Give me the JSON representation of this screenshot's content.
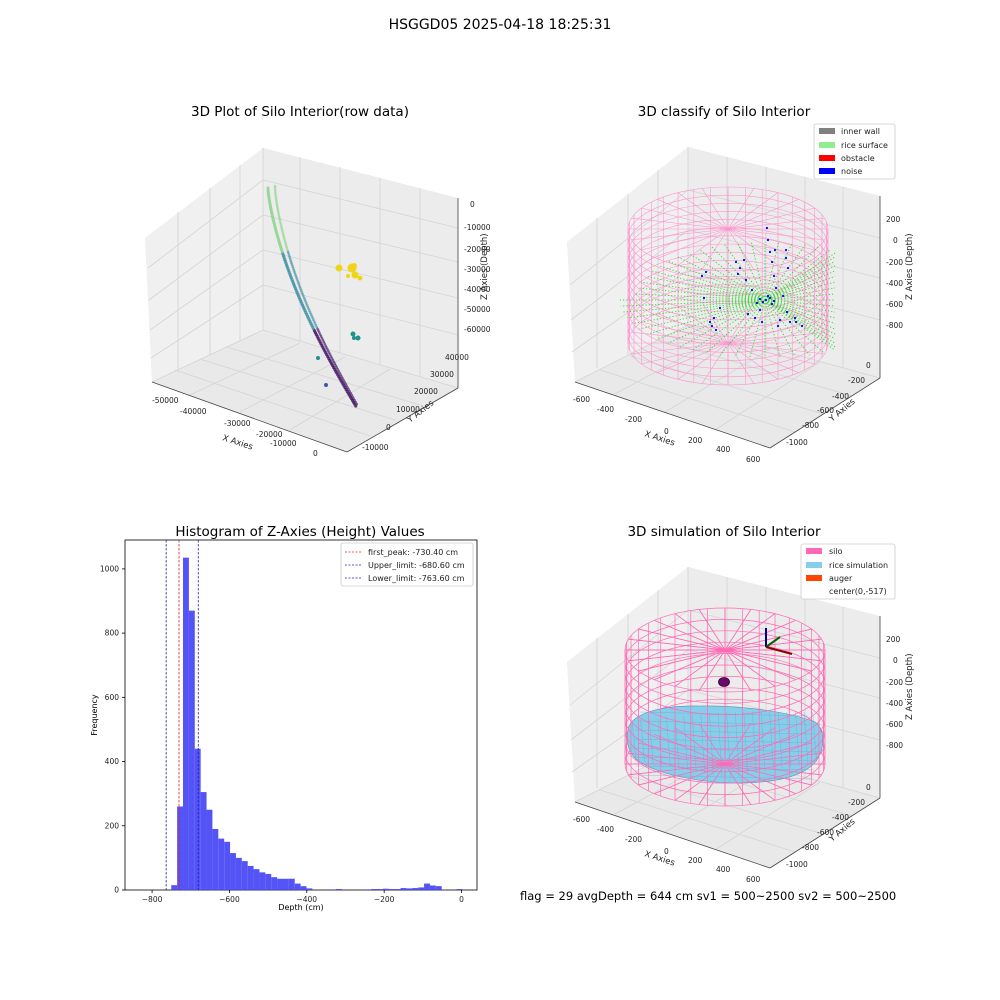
{
  "suptitle": "HSGGD05 2025-04-18 18:25:31",
  "footer": "flag = 29  avgDepth = 644 cm  sv1 = 500~2500  sv2 = 500~2500",
  "chart_data": [
    {
      "type": "scatter",
      "title": "3D Plot of Silo Interior(row data)",
      "xlabel": "X Axies",
      "ylabel": "Y Axies",
      "zlabel": "Z Axies (Depth)",
      "x_ticks": [
        "-50000",
        "-40000",
        "-30000",
        "-20000",
        "-10000",
        "0"
      ],
      "y_ticks": [
        "-10000",
        "0",
        "10000",
        "20000",
        "30000",
        "40000"
      ],
      "z_ticks": [
        "0",
        "-10000",
        "-20000",
        "-30000",
        "-40000",
        "-50000",
        "-60000"
      ],
      "colors": {
        "high": "#8bd38b",
        "mid": "#3a8ca0",
        "low": "#3b0a5c",
        "cluster_a": "#f0d418",
        "cluster_b": "#21918c"
      }
    },
    {
      "type": "scatter",
      "title": "3D classify of Silo Interior",
      "xlabel": "X Axies",
      "ylabel": "Y Axies",
      "zlabel": "Z Axies (Depth)",
      "x_ticks": [
        "-600",
        "-400",
        "-200",
        "0",
        "200",
        "400",
        "600"
      ],
      "y_ticks": [
        "0",
        "-200",
        "-400",
        "-600",
        "-800",
        "-1000"
      ],
      "z_ticks": [
        "200",
        "0",
        "-200",
        "-400",
        "-600",
        "-800"
      ],
      "legend_position": "top-right",
      "legend": [
        {
          "label": "inner wall",
          "color": "#808080"
        },
        {
          "label": "rice surface",
          "color": "#90ee90"
        },
        {
          "label": "obstacle",
          "color": "#ff0000"
        },
        {
          "label": "noise",
          "color": "#0000ff"
        }
      ]
    },
    {
      "type": "bar",
      "title": "Histogram of Z-Axies (Height) Values",
      "xlabel": "Depth (cm)",
      "ylabel": "Frequency",
      "xlim": [
        -870,
        40
      ],
      "ylim": [
        0,
        1090
      ],
      "x_ticks": [
        -800,
        -600,
        -400,
        -200,
        0
      ],
      "y_ticks": [
        0,
        200,
        400,
        600,
        800,
        1000
      ],
      "bin_width": 15.2,
      "bins": [
        {
          "x": -750.4,
          "v": 15
        },
        {
          "x": -735.2,
          "v": 260
        },
        {
          "x": -720.0,
          "v": 1035
        },
        {
          "x": -704.8,
          "v": 870
        },
        {
          "x": -689.6,
          "v": 440
        },
        {
          "x": -674.4,
          "v": 305
        },
        {
          "x": -659.2,
          "v": 250
        },
        {
          "x": -644.0,
          "v": 190
        },
        {
          "x": -628.8,
          "v": 160
        },
        {
          "x": -613.6,
          "v": 150
        },
        {
          "x": -598.4,
          "v": 115
        },
        {
          "x": -583.2,
          "v": 100
        },
        {
          "x": -568.0,
          "v": 90
        },
        {
          "x": -552.8,
          "v": 75
        },
        {
          "x": -537.6,
          "v": 65
        },
        {
          "x": -522.4,
          "v": 55
        },
        {
          "x": -507.2,
          "v": 50
        },
        {
          "x": -492.0,
          "v": 40
        },
        {
          "x": -476.8,
          "v": 35
        },
        {
          "x": -461.6,
          "v": 35
        },
        {
          "x": -446.4,
          "v": 35
        },
        {
          "x": -431.2,
          "v": 20
        },
        {
          "x": -416.0,
          "v": 12
        },
        {
          "x": -400.8,
          "v": 5
        },
        {
          "x": -340.0,
          "v": 2
        },
        {
          "x": -324.8,
          "v": 3
        },
        {
          "x": -248.8,
          "v": 2
        },
        {
          "x": -233.6,
          "v": 3
        },
        {
          "x": -218.4,
          "v": 3
        },
        {
          "x": -203.2,
          "v": 4
        },
        {
          "x": -188.0,
          "v": 3
        },
        {
          "x": -172.8,
          "v": 3
        },
        {
          "x": -157.6,
          "v": 6
        },
        {
          "x": -142.4,
          "v": 5
        },
        {
          "x": -127.2,
          "v": 6
        },
        {
          "x": -112.0,
          "v": 8
        },
        {
          "x": -96.8,
          "v": 20
        },
        {
          "x": -81.6,
          "v": 14
        },
        {
          "x": -66.4,
          "v": 12
        },
        {
          "x": -13.0,
          "v": 3
        }
      ],
      "bar_color": "#4a4af5",
      "vlines": [
        {
          "x": -730.4,
          "label": "first_peak: -730.40 cm",
          "color": "#d62728"
        },
        {
          "x": -680.6,
          "label": "Upper_limit: -680.60 cm",
          "color": "#2020c0"
        },
        {
          "x": -763.6,
          "label": "Lower_limit: -763.60 cm",
          "color": "#2020c0"
        }
      ],
      "legend_position": "top-right"
    },
    {
      "type": "scatter",
      "title": "3D simulation of Silo Interior",
      "xlabel": "X Axies",
      "ylabel": "Y Axies",
      "zlabel": "Z Axies (Depth)",
      "x_ticks": [
        "-600",
        "-400",
        "-200",
        "0",
        "200",
        "400",
        "600"
      ],
      "y_ticks": [
        "0",
        "-200",
        "-400",
        "-600",
        "-800",
        "-1000"
      ],
      "z_ticks": [
        "200",
        "0",
        "-200",
        "-400",
        "-600",
        "-800"
      ],
      "legend_position": "top-right",
      "legend": [
        {
          "label": "silo",
          "color": "#ff69b4"
        },
        {
          "label": "rice simulation",
          "color": "#87ceeb"
        },
        {
          "label": "auger",
          "color": "#ff4500"
        },
        {
          "label": "center(0,-517)",
          "color": ""
        }
      ]
    }
  ]
}
